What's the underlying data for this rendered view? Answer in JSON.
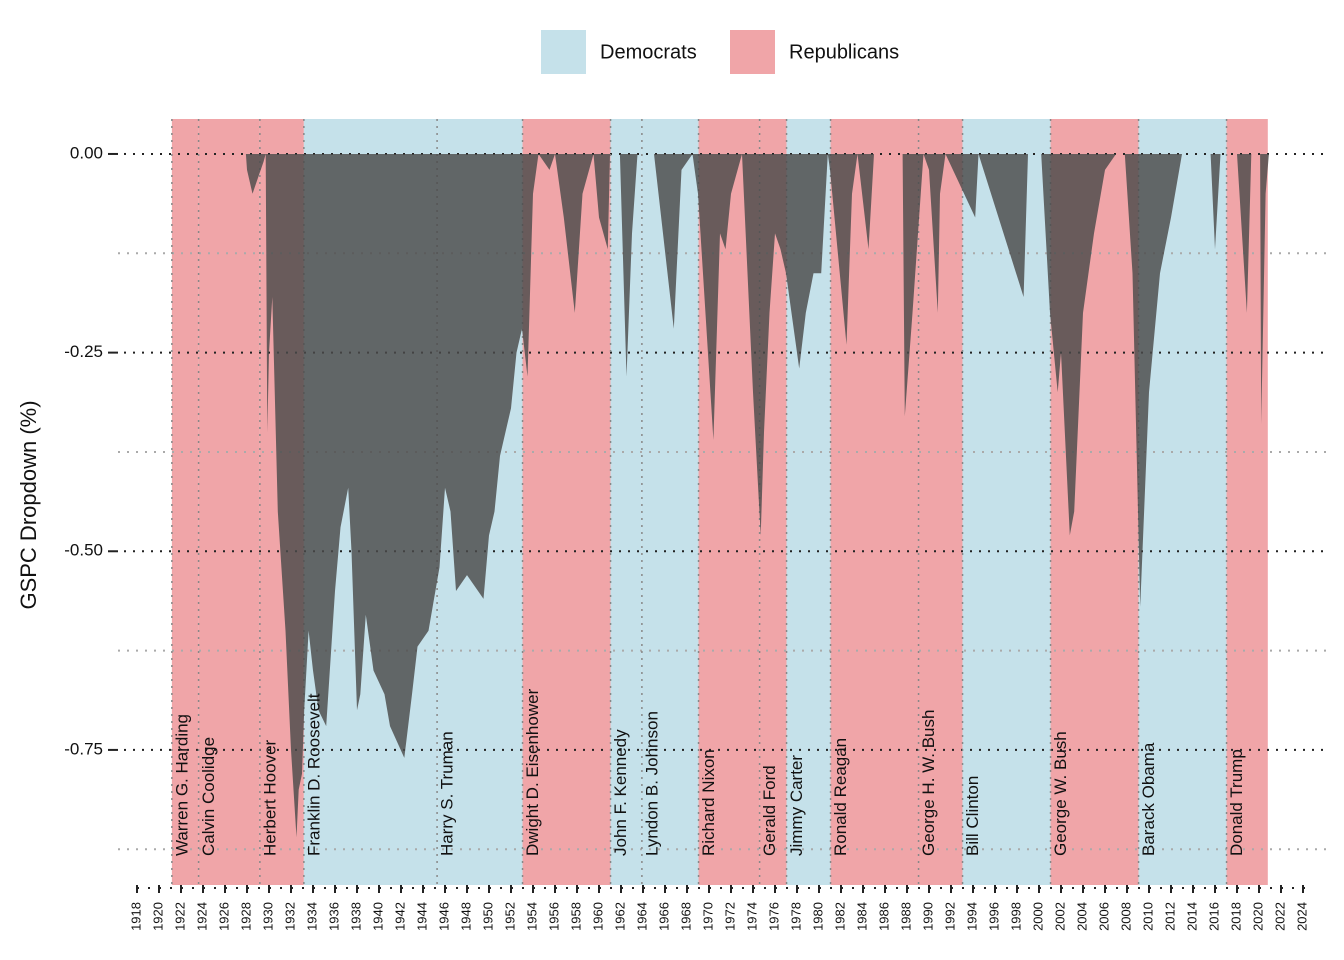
{
  "chart_data": {
    "type": "area",
    "ylabel": "GSPC Dropdown (%)",
    "xlim": [
      1918,
      2024
    ],
    "ylim": [
      -0.92,
      0.044
    ],
    "xticks": [
      1918,
      1920,
      1922,
      1924,
      1926,
      1928,
      1930,
      1932,
      1934,
      1936,
      1938,
      1940,
      1942,
      1944,
      1946,
      1948,
      1950,
      1952,
      1954,
      1956,
      1958,
      1960,
      1962,
      1964,
      1966,
      1968,
      1970,
      1972,
      1974,
      1976,
      1978,
      1980,
      1982,
      1984,
      1986,
      1988,
      1990,
      1992,
      1994,
      1996,
      1998,
      2000,
      2002,
      2004,
      2006,
      2008,
      2010,
      2012,
      2014,
      2016,
      2018,
      2020,
      2022,
      2024
    ],
    "yticks": [
      {
        "value": 0,
        "label": "0.00"
      },
      {
        "value": -0.25,
        "label": "-0.25"
      },
      {
        "value": -0.5,
        "label": "-0.50"
      },
      {
        "value": -0.75,
        "label": "-0.75"
      }
    ],
    "yminorticks": [
      -0.125,
      -0.375,
      -0.625,
      -0.875
    ],
    "legend": [
      {
        "name": "Democrats",
        "color": "#c5e1ea"
      },
      {
        "name": "Republicans",
        "color": "#f0a5a8"
      }
    ],
    "presidents": [
      {
        "name": "Warren G. Harding",
        "party": "Republicans",
        "start": 1921.17,
        "end": 1923.6
      },
      {
        "name": "Calvin Coolidge",
        "party": "Republicans",
        "start": 1923.6,
        "end": 1929.17
      },
      {
        "name": "Herbert Hoover",
        "party": "Republicans",
        "start": 1929.17,
        "end": 1933.17
      },
      {
        "name": "Franklin D. Roosevelt",
        "party": "Democrats",
        "start": 1933.17,
        "end": 1945.28
      },
      {
        "name": "Harry S. Truman",
        "party": "Democrats",
        "start": 1945.28,
        "end": 1953.05
      },
      {
        "name": "Dwight D. Eisenhower",
        "party": "Republicans",
        "start": 1953.05,
        "end": 1961.05
      },
      {
        "name": "John F. Kennedy",
        "party": "Democrats",
        "start": 1961.05,
        "end": 1963.9
      },
      {
        "name": "Lyndon B. Johnson",
        "party": "Democrats",
        "start": 1963.9,
        "end": 1969.05
      },
      {
        "name": "Richard Nixon",
        "party": "Republicans",
        "start": 1969.05,
        "end": 1974.6
      },
      {
        "name": "Gerald Ford",
        "party": "Republicans",
        "start": 1974.6,
        "end": 1977.05
      },
      {
        "name": "Jimmy Carter",
        "party": "Democrats",
        "start": 1977.05,
        "end": 1981.05
      },
      {
        "name": "Ronald Reagan",
        "party": "Republicans",
        "start": 1981.05,
        "end": 1989.05
      },
      {
        "name": "George H. W. Bush",
        "party": "Republicans",
        "start": 1989.05,
        "end": 1993.05
      },
      {
        "name": "Bill Clinton",
        "party": "Democrats",
        "start": 1993.05,
        "end": 2001.05
      },
      {
        "name": "George W. Bush",
        "party": "Republicans",
        "start": 2001.05,
        "end": 2009.05
      },
      {
        "name": "Barack Obama",
        "party": "Democrats",
        "start": 2009.05,
        "end": 2017.05
      },
      {
        "name": "Donald Trump",
        "party": "Republicans",
        "start": 2017.05,
        "end": 2020.8
      }
    ],
    "color": "#4a4a4a",
    "x": [
      1927.9,
      1928.0,
      1928.5,
      1929.0,
      1929.5,
      1929.7,
      1929.85,
      1930.0,
      1930.3,
      1930.8,
      1931.5,
      1932.0,
      1932.5,
      1932.7,
      1933.0,
      1933.2,
      1933.6,
      1934.0,
      1934.5,
      1935.2,
      1936.0,
      1936.5,
      1937.2,
      1937.5,
      1938.0,
      1938.3,
      1938.8,
      1939.5,
      1940.5,
      1941.0,
      1942.3,
      1943.0,
      1943.5,
      1944.5,
      1945.5,
      1946.0,
      1946.5,
      1947.0,
      1948.0,
      1949.5,
      1950.0,
      1950.5,
      1951.0,
      1952.0,
      1952.5,
      1953.0,
      1953.5,
      1954.0,
      1954.5,
      1955.5,
      1956.0,
      1956.8,
      1957.8,
      1958.5,
      1959.5,
      1960.0,
      1960.8,
      1961.0,
      1961.9,
      1962.5,
      1963.0,
      1963.5,
      1965.0,
      1966.8,
      1967.5,
      1968.5,
      1969.0,
      1970.4,
      1971.0,
      1971.5,
      1972.0,
      1973.0,
      1974.0,
      1974.7,
      1975.0,
      1975.5,
      1976.0,
      1976.5,
      1977.0,
      1978.2,
      1978.8,
      1979.5,
      1980.2,
      1980.8,
      1981.0,
      1982.5,
      1983.0,
      1983.5,
      1984.5,
      1985.0,
      1987.6,
      1987.8,
      1988.5,
      1989.5,
      1990.0,
      1990.8,
      1991.0,
      1991.5,
      1994.2,
      1994.5,
      1998.6,
      1999.0,
      2000.2,
      2001.0,
      2001.7,
      2002.0,
      2002.8,
      2003.2,
      2004.0,
      2005.0,
      2006.0,
      2007.0,
      2007.8,
      2008.5,
      2009.2,
      2010.0,
      2011.0,
      2012.0,
      2013.0,
      2015.6,
      2016.0,
      2016.5,
      2018.0,
      2018.9,
      2019.3,
      2020.1,
      2020.2,
      2020.6,
      2020.9
    ],
    "values": [
      0,
      -0.02,
      -0.05,
      -0.03,
      -0.01,
      0,
      -0.35,
      -0.25,
      -0.18,
      -0.45,
      -0.6,
      -0.75,
      -0.86,
      -0.8,
      -0.78,
      -0.7,
      -0.6,
      -0.65,
      -0.7,
      -0.72,
      -0.55,
      -0.47,
      -0.42,
      -0.5,
      -0.7,
      -0.68,
      -0.58,
      -0.65,
      -0.68,
      -0.72,
      -0.76,
      -0.68,
      -0.62,
      -0.6,
      -0.52,
      -0.42,
      -0.45,
      -0.55,
      -0.53,
      -0.56,
      -0.48,
      -0.45,
      -0.38,
      -0.32,
      -0.25,
      -0.22,
      -0.28,
      -0.05,
      0,
      -0.02,
      0,
      -0.08,
      -0.2,
      -0.05,
      0,
      -0.08,
      -0.12,
      0,
      0,
      -0.28,
      -0.1,
      0,
      0,
      -0.22,
      -0.02,
      0,
      -0.05,
      -0.36,
      -0.1,
      -0.12,
      -0.05,
      0,
      -0.3,
      -0.48,
      -0.35,
      -0.2,
      -0.1,
      -0.12,
      -0.15,
      -0.27,
      -0.2,
      -0.15,
      -0.15,
      0,
      -0.02,
      -0.24,
      -0.05,
      0,
      -0.12,
      0,
      0,
      -0.33,
      -0.2,
      0,
      -0.02,
      -0.2,
      -0.05,
      0,
      -0.08,
      0,
      -0.18,
      0,
      0,
      -0.2,
      -0.3,
      -0.25,
      -0.48,
      -0.45,
      -0.2,
      -0.1,
      -0.02,
      0,
      0,
      -0.15,
      -0.57,
      -0.3,
      -0.15,
      -0.08,
      0,
      0,
      -0.12,
      0,
      0,
      -0.2,
      0,
      0,
      -0.34,
      -0.05,
      0
    ]
  }
}
